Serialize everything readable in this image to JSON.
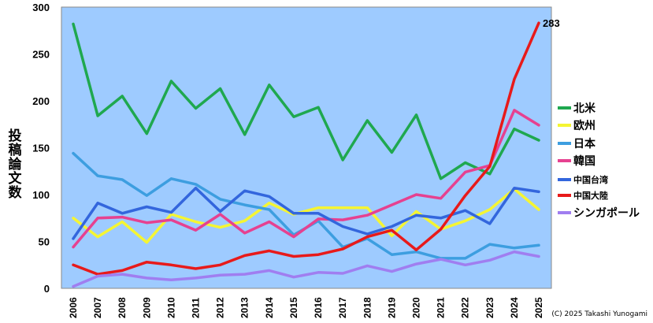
{
  "chart_data": {
    "type": "line",
    "title": "",
    "ylabel": "投稿論文数",
    "xlabel": "",
    "ylim": [
      0,
      300
    ],
    "yticks": [
      0,
      50,
      100,
      150,
      200,
      250,
      300
    ],
    "grid": false,
    "legend_position": "right",
    "x": [
      "2006",
      "2007",
      "2008",
      "2009",
      "2010",
      "2011",
      "2012",
      "2013",
      "2014",
      "2015",
      "2016",
      "2017",
      "2018",
      "2019",
      "2020",
      "2021",
      "2022",
      "2023",
      "2024",
      "2025"
    ],
    "series": [
      {
        "name": "北米",
        "color": "#1fa84f",
        "values": [
          282,
          184,
          205,
          165,
          221,
          192,
          213,
          164,
          217,
          183,
          193,
          137,
          179,
          145,
          185,
          117,
          134,
          122,
          170,
          158
        ]
      },
      {
        "name": "欧州",
        "color": "#f5f532",
        "values": [
          75,
          55,
          71,
          49,
          79,
          71,
          65,
          72,
          91,
          79,
          86,
          86,
          86,
          56,
          82,
          63,
          72,
          84,
          106,
          84
        ]
      },
      {
        "name": "日本",
        "color": "#3d9ee0",
        "values": [
          144,
          120,
          116,
          99,
          117,
          111,
          95,
          89,
          84,
          57,
          72,
          44,
          53,
          36,
          39,
          32,
          32,
          47,
          43,
          46
        ]
      },
      {
        "name": "韓国",
        "color": "#e64190",
        "values": [
          44,
          75,
          76,
          70,
          73,
          62,
          79,
          59,
          71,
          55,
          74,
          73,
          78,
          89,
          100,
          96,
          124,
          131,
          190,
          174
        ]
      },
      {
        "name": "中国台湾",
        "color": "#3366dd",
        "values": [
          53,
          91,
          80,
          87,
          81,
          107,
          82,
          104,
          98,
          80,
          80,
          66,
          58,
          66,
          78,
          75,
          83,
          69,
          107,
          103
        ]
      },
      {
        "name": "中国大陸",
        "color": "#e81a1a",
        "values": [
          25,
          15,
          19,
          28,
          25,
          21,
          25,
          35,
          40,
          34,
          36,
          42,
          55,
          62,
          41,
          63,
          99,
          130,
          223,
          283
        ]
      },
      {
        "name": "シンガポール",
        "color": "#a07ef0",
        "values": [
          2,
          13,
          15,
          11,
          9,
          11,
          14,
          15,
          19,
          12,
          17,
          16,
          24,
          18,
          26,
          31,
          25,
          30,
          39,
          34
        ]
      }
    ],
    "annotations": [
      {
        "x": "2025",
        "y": 283,
        "text": "283"
      }
    ]
  },
  "credit": "(C) 2025 Takashi Yunogami"
}
